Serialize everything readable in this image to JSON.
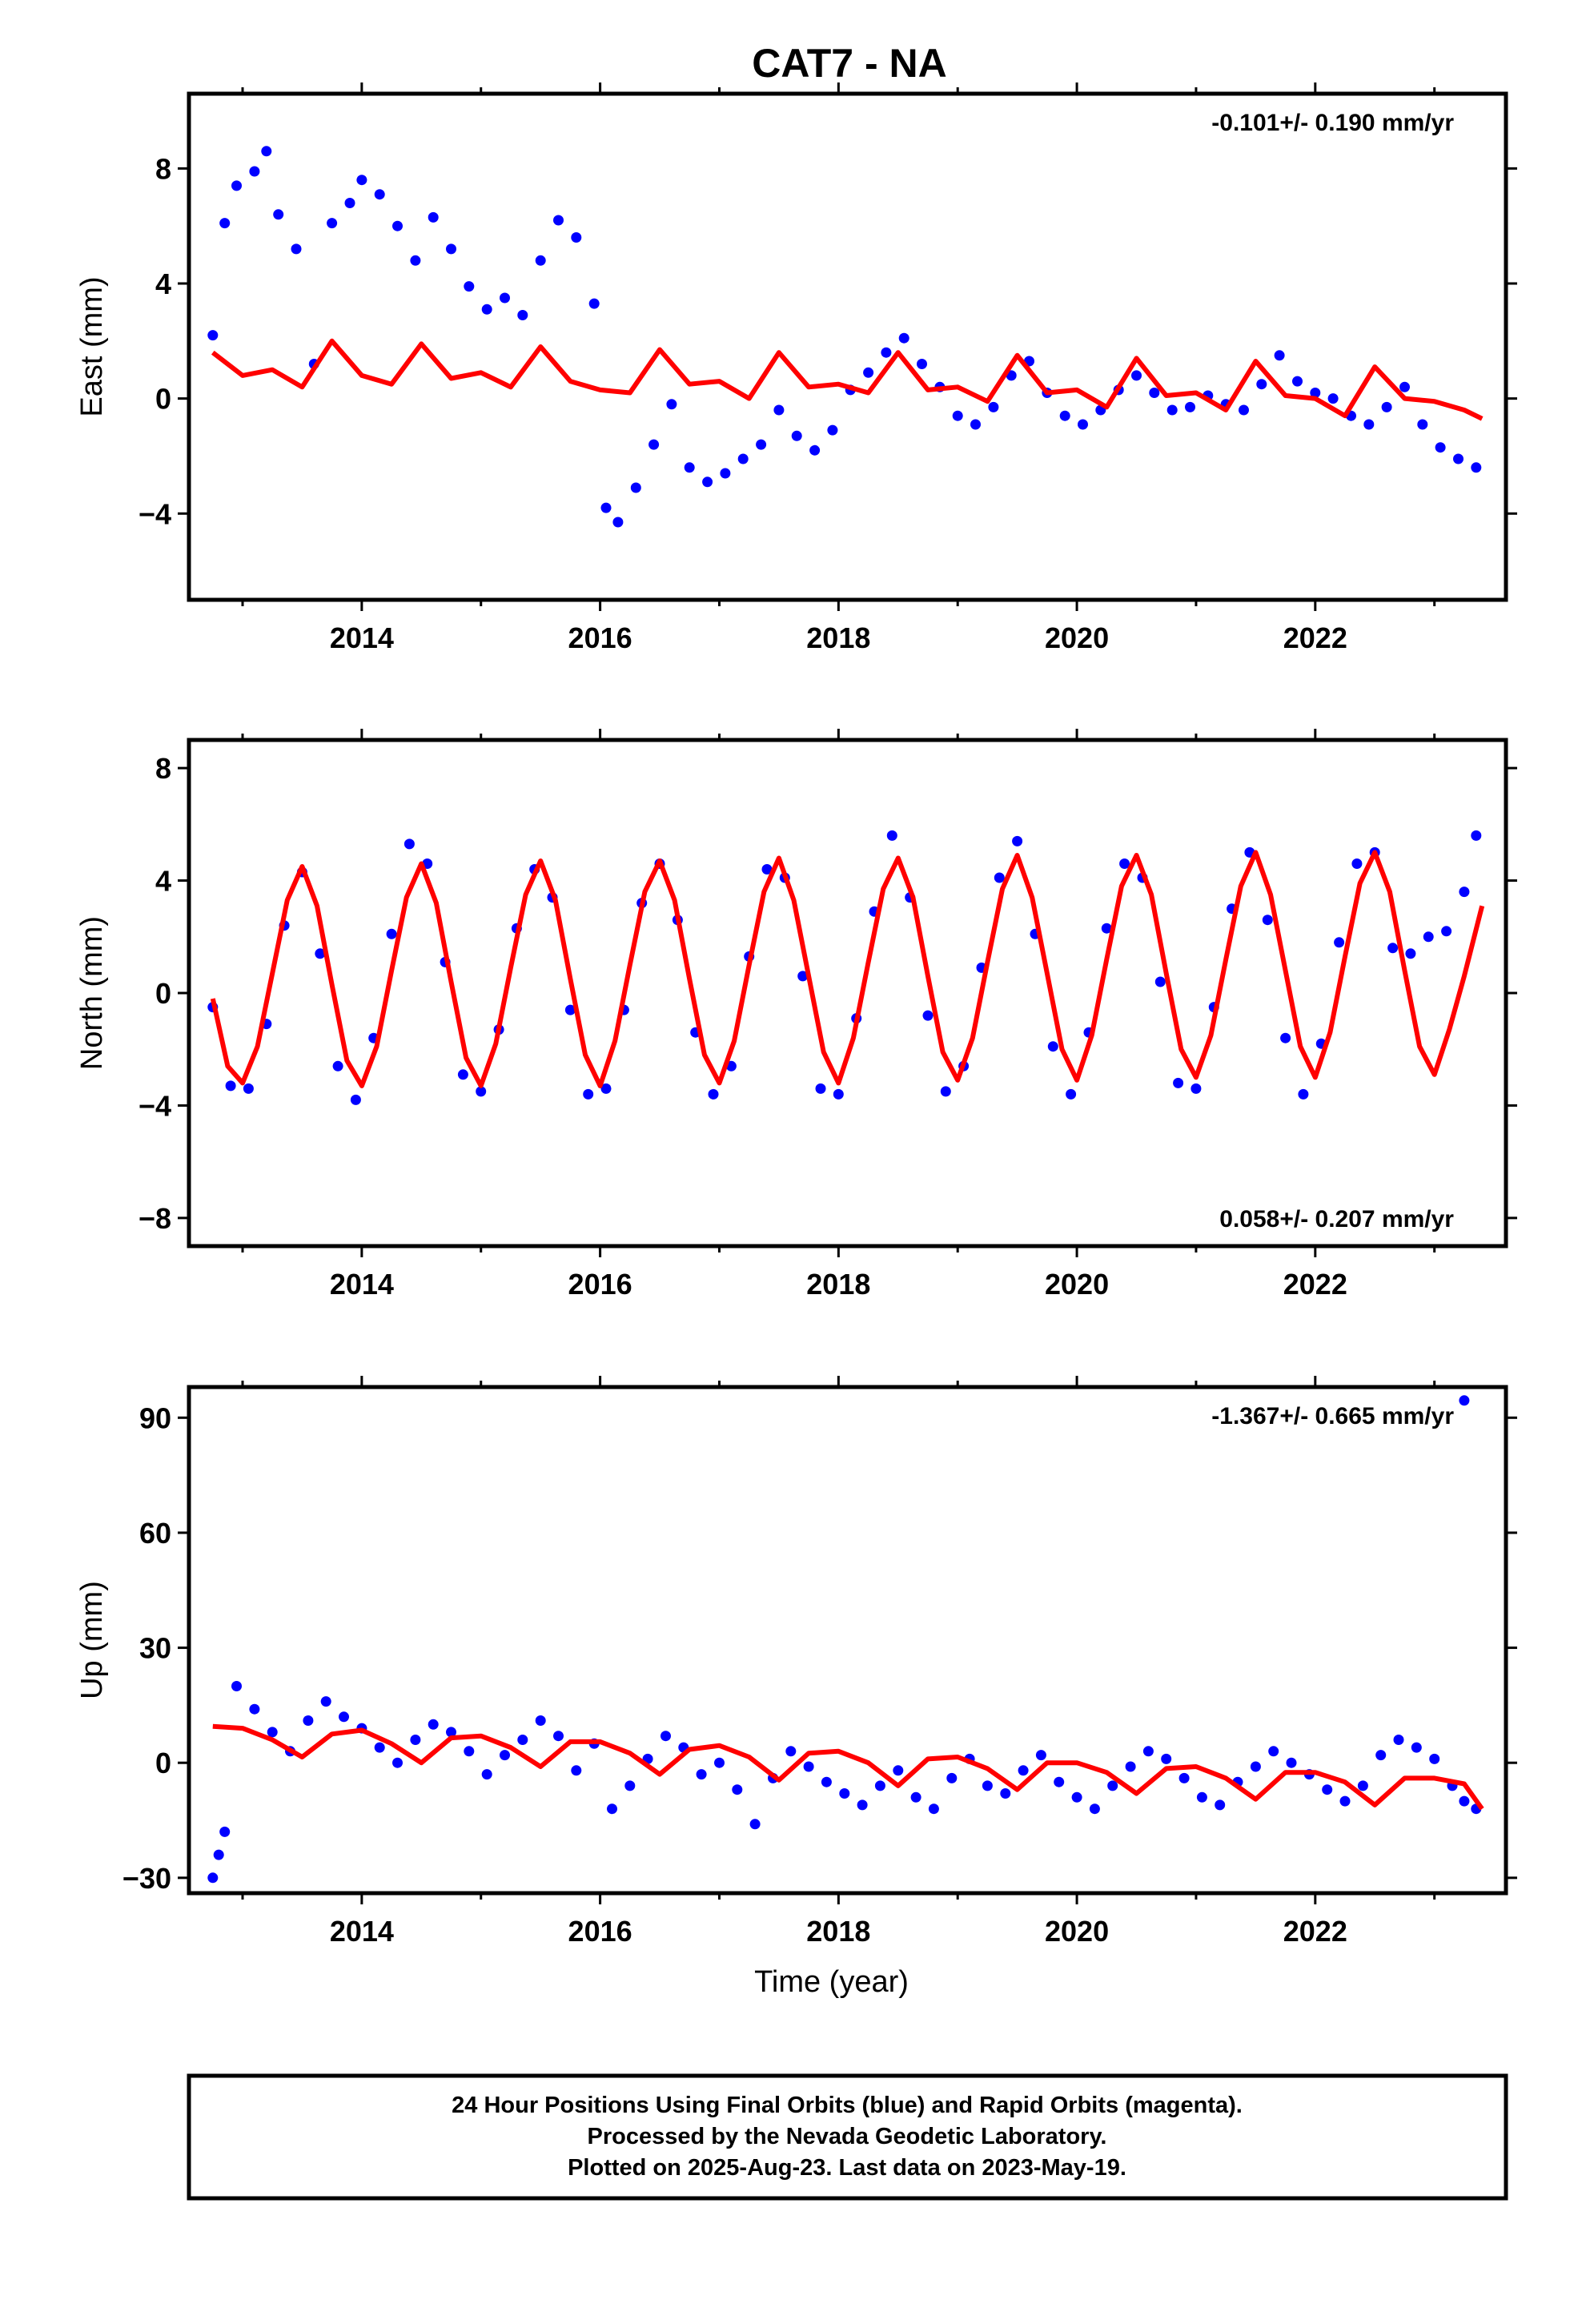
{
  "page": {
    "title": "CAT7 - NA",
    "colors": {
      "data": "#0000ff",
      "model": "#ff0000",
      "frame": "#000000"
    }
  },
  "chart_data": [
    {
      "type": "scatter",
      "panel": "east",
      "ylabel": "East (mm)",
      "xlim": [
        2012.55,
        2023.6
      ],
      "ylim": [
        -7.0,
        10.6
      ],
      "xticks": [
        2014,
        2016,
        2018,
        2020,
        2022
      ],
      "yticks": [
        -4,
        0,
        4,
        8
      ],
      "rate_label": "-0.101+/- 0.190 mm/yr",
      "rate_position": "top-right",
      "series": [
        {
          "kind": "points",
          "color": "#0000ff",
          "x": [
            2012.75,
            2012.85,
            2012.95,
            2013.1,
            2013.2,
            2013.3,
            2013.45,
            2013.6,
            2013.75,
            2013.9,
            2014.0,
            2014.15,
            2014.3,
            2014.45,
            2014.6,
            2014.75,
            2014.9,
            2015.05,
            2015.2,
            2015.35,
            2015.5,
            2015.65,
            2015.8,
            2015.95,
            2016.05,
            2016.15,
            2016.3,
            2016.45,
            2016.6,
            2016.75,
            2016.9,
            2017.05,
            2017.2,
            2017.35,
            2017.5,
            2017.65,
            2017.8,
            2017.95,
            2018.1,
            2018.25,
            2018.4,
            2018.55,
            2018.7,
            2018.85,
            2019.0,
            2019.15,
            2019.3,
            2019.45,
            2019.6,
            2019.75,
            2019.9,
            2020.05,
            2020.2,
            2020.35,
            2020.5,
            2020.65,
            2020.8,
            2020.95,
            2021.1,
            2021.25,
            2021.4,
            2021.55,
            2021.7,
            2021.85,
            2022.0,
            2022.15,
            2022.3,
            2022.45,
            2022.6,
            2022.75,
            2022.9,
            2023.05,
            2023.2,
            2023.35
          ],
          "y": [
            2.2,
            6.1,
            7.4,
            7.9,
            8.6,
            6.4,
            5.2,
            1.2,
            6.1,
            6.8,
            7.6,
            7.1,
            6.0,
            4.8,
            6.3,
            5.2,
            3.9,
            3.1,
            3.5,
            2.9,
            4.8,
            6.2,
            5.6,
            3.3,
            -3.8,
            -4.3,
            -3.1,
            -1.6,
            -0.2,
            -2.4,
            -2.9,
            -2.6,
            -2.1,
            -1.6,
            -0.4,
            -1.3,
            -1.8,
            -1.1,
            0.3,
            0.9,
            1.6,
            2.1,
            1.2,
            0.4,
            -0.6,
            -0.9,
            -0.3,
            0.8,
            1.3,
            0.2,
            -0.6,
            -0.9,
            -0.4,
            0.3,
            0.8,
            0.2,
            -0.4,
            -0.3,
            0.1,
            -0.2,
            -0.4,
            0.5,
            1.5,
            0.6,
            0.2,
            0.0,
            -0.6,
            -0.9,
            -0.3,
            0.4,
            -0.9,
            -1.7,
            -2.1,
            -2.4
          ]
        },
        {
          "kind": "model",
          "color": "#ff0000",
          "x": [
            2012.75,
            2013.0,
            2013.25,
            2013.5,
            2013.75,
            2014.0,
            2014.25,
            2014.5,
            2014.75,
            2015.0,
            2015.25,
            2015.5,
            2015.75,
            2016.0,
            2016.25,
            2016.5,
            2016.75,
            2017.0,
            2017.25,
            2017.5,
            2017.75,
            2018.0,
            2018.25,
            2018.5,
            2018.75,
            2019.0,
            2019.25,
            2019.5,
            2019.75,
            2020.0,
            2020.25,
            2020.5,
            2020.75,
            2021.0,
            2021.25,
            2021.5,
            2021.75,
            2022.0,
            2022.25,
            2022.5,
            2022.75,
            2023.0,
            2023.25,
            2023.4
          ],
          "y": [
            1.6,
            0.8,
            1.0,
            0.4,
            2.0,
            0.8,
            0.5,
            1.9,
            0.7,
            0.9,
            0.4,
            1.8,
            0.6,
            0.3,
            0.2,
            1.7,
            0.5,
            0.6,
            0.0,
            1.6,
            0.4,
            0.5,
            0.2,
            1.6,
            0.3,
            0.4,
            -0.1,
            1.5,
            0.2,
            0.3,
            -0.3,
            1.4,
            0.1,
            0.2,
            -0.4,
            1.3,
            0.1,
            0.0,
            -0.6,
            1.1,
            0.0,
            -0.1,
            -0.4,
            -0.7
          ]
        }
      ]
    },
    {
      "type": "scatter",
      "panel": "north",
      "ylabel": "North (mm)",
      "xlim": [
        2012.55,
        2023.6
      ],
      "ylim": [
        -9.0,
        9.0
      ],
      "xticks": [
        2014,
        2016,
        2018,
        2020,
        2022
      ],
      "yticks": [
        -8,
        -4,
        0,
        4,
        8
      ],
      "rate_label": "0.058+/- 0.207 mm/yr",
      "rate_position": "bottom-right",
      "series": [
        {
          "kind": "points",
          "color": "#0000ff",
          "x": [
            2012.75,
            2012.9,
            2013.05,
            2013.2,
            2013.35,
            2013.5,
            2013.65,
            2013.8,
            2013.95,
            2014.1,
            2014.25,
            2014.4,
            2014.55,
            2014.7,
            2014.85,
            2015.0,
            2015.15,
            2015.3,
            2015.45,
            2015.6,
            2015.75,
            2015.9,
            2016.05,
            2016.2,
            2016.35,
            2016.5,
            2016.65,
            2016.8,
            2016.95,
            2017.1,
            2017.25,
            2017.4,
            2017.55,
            2017.7,
            2017.85,
            2018.0,
            2018.15,
            2018.3,
            2018.45,
            2018.6,
            2018.75,
            2018.9,
            2019.05,
            2019.2,
            2019.35,
            2019.5,
            2019.65,
            2019.8,
            2019.95,
            2020.1,
            2020.25,
            2020.4,
            2020.55,
            2020.7,
            2020.85,
            2021.0,
            2021.15,
            2021.3,
            2021.45,
            2021.6,
            2021.75,
            2021.9,
            2022.05,
            2022.2,
            2022.35,
            2022.5,
            2022.65,
            2022.8,
            2022.95,
            2023.1,
            2023.25,
            2023.35
          ],
          "y": [
            -0.5,
            -3.3,
            -3.4,
            -1.1,
            2.4,
            4.3,
            1.4,
            -2.6,
            -3.8,
            -1.6,
            2.1,
            5.3,
            4.6,
            1.1,
            -2.9,
            -3.5,
            -1.3,
            2.3,
            4.4,
            3.4,
            -0.6,
            -3.6,
            -3.4,
            -0.6,
            3.2,
            4.6,
            2.6,
            -1.4,
            -3.6,
            -2.6,
            1.3,
            4.4,
            4.1,
            0.6,
            -3.4,
            -3.6,
            -0.9,
            2.9,
            5.6,
            3.4,
            -0.8,
            -3.5,
            -2.6,
            0.9,
            4.1,
            5.4,
            2.1,
            -1.9,
            -3.6,
            -1.4,
            2.3,
            4.6,
            4.1,
            0.4,
            -3.2,
            -3.4,
            -0.5,
            3.0,
            5.0,
            2.6,
            -1.6,
            -3.6,
            -1.8,
            1.8,
            4.6,
            5.0,
            1.6,
            1.4,
            2.0,
            2.2,
            3.6,
            5.6
          ]
        },
        {
          "kind": "model",
          "color": "#ff0000",
          "x": [
            2012.75,
            2012.875,
            2013.0,
            2013.125,
            2013.25,
            2013.375,
            2013.5,
            2013.625,
            2013.75,
            2013.875,
            2014.0,
            2014.125,
            2014.25,
            2014.375,
            2014.5,
            2014.625,
            2014.75,
            2014.875,
            2015.0,
            2015.125,
            2015.25,
            2015.375,
            2015.5,
            2015.625,
            2015.75,
            2015.875,
            2016.0,
            2016.125,
            2016.25,
            2016.375,
            2016.5,
            2016.625,
            2016.75,
            2016.875,
            2017.0,
            2017.125,
            2017.25,
            2017.375,
            2017.5,
            2017.625,
            2017.75,
            2017.875,
            2018.0,
            2018.125,
            2018.25,
            2018.375,
            2018.5,
            2018.625,
            2018.75,
            2018.875,
            2019.0,
            2019.125,
            2019.25,
            2019.375,
            2019.5,
            2019.625,
            2019.75,
            2019.875,
            2020.0,
            2020.125,
            2020.25,
            2020.375,
            2020.5,
            2020.625,
            2020.75,
            2020.875,
            2021.0,
            2021.125,
            2021.25,
            2021.375,
            2021.5,
            2021.625,
            2021.75,
            2021.875,
            2022.0,
            2022.125,
            2022.25,
            2022.375,
            2022.5,
            2022.625,
            2022.75,
            2022.875,
            2023.0,
            2023.125,
            2023.25,
            2023.4
          ],
          "y": [
            -0.2,
            -2.6,
            -3.2,
            -1.9,
            0.7,
            3.3,
            4.5,
            3.1,
            0.3,
            -2.4,
            -3.3,
            -1.9,
            0.8,
            3.4,
            4.6,
            3.2,
            0.4,
            -2.3,
            -3.3,
            -1.8,
            0.9,
            3.5,
            4.7,
            3.3,
            0.5,
            -2.2,
            -3.3,
            -1.7,
            1.0,
            3.6,
            4.7,
            3.3,
            0.5,
            -2.2,
            -3.2,
            -1.7,
            1.0,
            3.6,
            4.8,
            3.3,
            0.6,
            -2.1,
            -3.2,
            -1.6,
            1.1,
            3.7,
            4.8,
            3.4,
            0.6,
            -2.1,
            -3.1,
            -1.6,
            1.1,
            3.7,
            4.9,
            3.4,
            0.7,
            -2.0,
            -3.1,
            -1.5,
            1.2,
            3.8,
            4.9,
            3.5,
            0.7,
            -2.0,
            -3.0,
            -1.5,
            1.2,
            3.8,
            5.0,
            3.5,
            0.8,
            -1.9,
            -3.0,
            -1.4,
            1.3,
            3.9,
            5.0,
            3.6,
            0.8,
            -1.9,
            -2.9,
            -1.3,
            0.6,
            3.1
          ]
        }
      ]
    },
    {
      "type": "scatter",
      "panel": "up",
      "ylabel": "Up (mm)",
      "xlabel": "Time (year)",
      "xlim": [
        2012.55,
        2023.6
      ],
      "ylim": [
        -34,
        98
      ],
      "xticks": [
        2014,
        2016,
        2018,
        2020,
        2022
      ],
      "yticks": [
        -30,
        0,
        30,
        60,
        90
      ],
      "rate_label": "-1.367+/- 0.665 mm/yr",
      "rate_position": "top-right",
      "series": [
        {
          "kind": "points",
          "color": "#0000ff",
          "x": [
            2012.75,
            2012.8,
            2012.85,
            2012.95,
            2013.1,
            2013.25,
            2013.4,
            2013.55,
            2013.7,
            2013.85,
            2014.0,
            2014.15,
            2014.3,
            2014.45,
            2014.6,
            2014.75,
            2014.9,
            2015.05,
            2015.2,
            2015.35,
            2015.5,
            2015.65,
            2015.8,
            2015.95,
            2016.1,
            2016.25,
            2016.4,
            2016.55,
            2016.7,
            2016.85,
            2017.0,
            2017.15,
            2017.3,
            2017.45,
            2017.6,
            2017.75,
            2017.9,
            2018.05,
            2018.2,
            2018.35,
            2018.5,
            2018.65,
            2018.8,
            2018.95,
            2019.1,
            2019.25,
            2019.4,
            2019.55,
            2019.7,
            2019.85,
            2020.0,
            2020.15,
            2020.3,
            2020.45,
            2020.6,
            2020.75,
            2020.9,
            2021.05,
            2021.2,
            2021.35,
            2021.5,
            2021.65,
            2021.8,
            2021.95,
            2022.1,
            2022.25,
            2022.4,
            2022.55,
            2022.7,
            2022.85,
            2023.0,
            2023.15,
            2023.25,
            2023.35
          ],
          "y": [
            -30,
            -24,
            -18,
            20,
            14,
            8,
            3,
            11,
            16,
            12,
            9,
            4,
            0,
            6,
            10,
            8,
            3,
            -3,
            2,
            6,
            11,
            7,
            -2,
            5,
            -12,
            -6,
            1,
            7,
            4,
            -3,
            0,
            -7,
            -16,
            -4,
            3,
            -1,
            -5,
            -8,
            -11,
            -6,
            -2,
            -9,
            -12,
            -4,
            1,
            -6,
            -8,
            -2,
            2,
            -5,
            -9,
            -12,
            -6,
            -1,
            3,
            1,
            -4,
            -9,
            -11,
            -5,
            -1,
            3,
            0,
            -3,
            -7,
            -10,
            -6,
            2,
            6,
            4,
            1,
            -6,
            -10,
            -12
          ]
        },
        {
          "kind": "points",
          "color": "#0000ff",
          "x": [
            2023.25
          ],
          "y": [
            94.5
          ]
        },
        {
          "kind": "model",
          "color": "#ff0000",
          "x": [
            2012.75,
            2013.0,
            2013.25,
            2013.5,
            2013.75,
            2014.0,
            2014.25,
            2014.5,
            2014.75,
            2015.0,
            2015.25,
            2015.5,
            2015.75,
            2016.0,
            2016.25,
            2016.5,
            2016.75,
            2017.0,
            2017.25,
            2017.5,
            2017.75,
            2018.0,
            2018.25,
            2018.5,
            2018.75,
            2019.0,
            2019.25,
            2019.5,
            2019.75,
            2020.0,
            2020.25,
            2020.5,
            2020.75,
            2021.0,
            2021.25,
            2021.5,
            2021.75,
            2022.0,
            2022.25,
            2022.5,
            2022.75,
            2023.0,
            2023.25,
            2023.4
          ],
          "y": [
            9.5,
            9.0,
            6.0,
            1.5,
            7.5,
            8.5,
            5.0,
            0.0,
            6.5,
            7.0,
            4.0,
            -1.0,
            5.5,
            5.5,
            2.5,
            -3.0,
            3.5,
            4.5,
            1.5,
            -4.5,
            2.5,
            3.0,
            0.0,
            -6.0,
            1.0,
            1.5,
            -1.5,
            -7.0,
            0.0,
            0.0,
            -2.5,
            -8.0,
            -1.5,
            -1.0,
            -4.0,
            -9.5,
            -2.5,
            -2.5,
            -5.0,
            -11.0,
            -4.0,
            -4.0,
            -5.5,
            -12.0
          ]
        }
      ]
    }
  ],
  "footer": {
    "line1": "24 Hour Positions Using Final Orbits (blue) and Rapid Orbits (magenta).",
    "line2": "Processed by the Nevada Geodetic Laboratory.",
    "line3": "Plotted on 2025-Aug-23. Last data on 2023-May-19."
  }
}
